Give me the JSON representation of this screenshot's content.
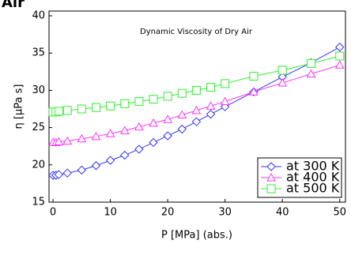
{
  "header": {
    "title": "Air"
  },
  "chart_data": {
    "type": "line",
    "title": "Dynamic Viscosity of Dry Air",
    "x_label": "P [MPa] (abs.)",
    "y_label": "η [μPa s]",
    "x": [
      0,
      0.5,
      1,
      2.5,
      5,
      7.5,
      10,
      12.5,
      15,
      17.5,
      20,
      22.5,
      25,
      27.5,
      30,
      35,
      40,
      45,
      50
    ],
    "series": [
      {
        "name": "at 300 K",
        "color": "#3333ff",
        "marker": "diamond",
        "values": [
          18.6,
          18.6,
          18.7,
          18.9,
          19.3,
          19.9,
          20.6,
          21.3,
          22.1,
          23.0,
          23.9,
          24.8,
          25.8,
          26.8,
          27.8,
          29.8,
          31.8,
          33.7,
          35.8
        ]
      },
      {
        "name": "at 400 K",
        "color": "#ff33ff",
        "marker": "triangle",
        "values": [
          23.0,
          23.0,
          23.1,
          23.2,
          23.5,
          23.8,
          24.2,
          24.6,
          25.1,
          25.6,
          26.1,
          26.7,
          27.3,
          27.9,
          28.5,
          29.8,
          31.0,
          32.2,
          33.4
        ]
      },
      {
        "name": "at 500 K",
        "color": "#33ee33",
        "marker": "square",
        "values": [
          27.1,
          27.1,
          27.2,
          27.3,
          27.5,
          27.7,
          27.9,
          28.2,
          28.5,
          28.8,
          29.2,
          29.6,
          30.0,
          30.4,
          30.9,
          31.9,
          32.7,
          33.6,
          34.6
        ]
      }
    ],
    "xlim": [
      -0.7,
      51
    ],
    "xticks": [
      0,
      10,
      20,
      30,
      40,
      50
    ],
    "ylim": [
      15,
      40
    ],
    "yticks": [
      15,
      20,
      25,
      30,
      35,
      40
    ],
    "legend": "lower-right"
  }
}
